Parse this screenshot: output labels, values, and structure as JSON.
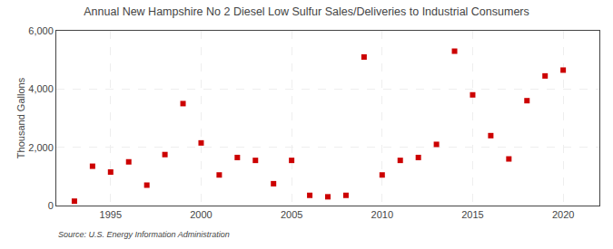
{
  "chart_data": {
    "type": "scatter",
    "title": "Annual New Hampshire No 2 Diesel Low Sulfur Sales/Deliveries to Industrial Consumers",
    "ylabel": "Thousand Gallons",
    "source": "Source: U.S. Energy Information Administration",
    "x": [
      1993,
      1994,
      1995,
      1996,
      1997,
      1998,
      1999,
      2000,
      2001,
      2002,
      2003,
      2004,
      2005,
      2006,
      2007,
      2008,
      2009,
      2010,
      2011,
      2012,
      2013,
      2014,
      2015,
      2016,
      2017,
      2018,
      2019,
      2020
    ],
    "values": [
      150,
      1350,
      1150,
      1500,
      700,
      1750,
      3500,
      2150,
      1050,
      1650,
      1550,
      750,
      1550,
      350,
      300,
      350,
      5100,
      1050,
      1550,
      1650,
      2100,
      5300,
      3800,
      2400,
      1600,
      3600,
      4450,
      4650
    ],
    "color": "#cc0000",
    "marker": "square",
    "xlim": [
      1992,
      2022
    ],
    "ylim": [
      0,
      6000
    ],
    "xticks": [
      1995,
      2000,
      2005,
      2010,
      2015,
      2020
    ],
    "yticks": [
      0,
      {
        "value": 2000,
        "label": "2,000"
      },
      {
        "value": 4000,
        "label": "4,000"
      },
      {
        "value": 6000,
        "label": "6,000"
      }
    ],
    "grid": true
  }
}
